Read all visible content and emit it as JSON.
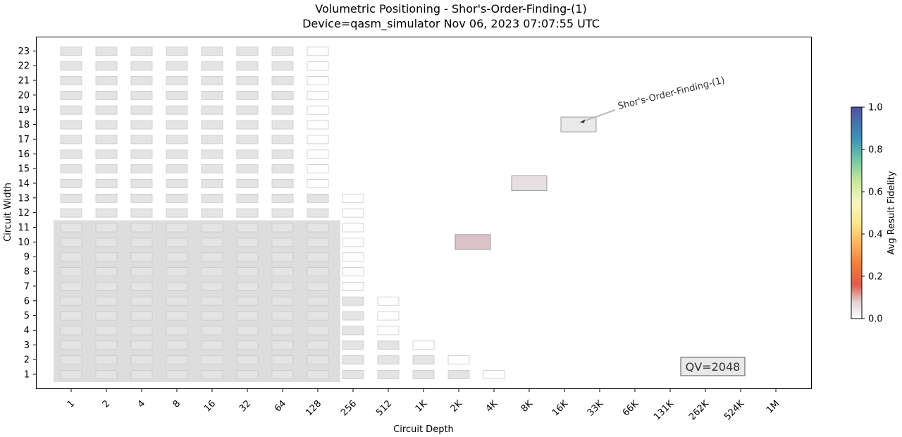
{
  "chart_data": {
    "type": "heatmap",
    "title": "Volumetric Positioning - Shor's-Order-Finding-(1)",
    "subtitle": "Device=qasm_simulator  Nov 06, 2023 07:07:55 UTC",
    "xlabel": "Circuit Depth",
    "ylabel": "Circuit Width",
    "x_tick_labels": [
      "1",
      "2",
      "4",
      "8",
      "16",
      "32",
      "64",
      "128",
      "256",
      "512",
      "1K",
      "2K",
      "4K",
      "8K",
      "16K",
      "33K",
      "66K",
      "131K",
      "262K",
      "524K",
      "1M"
    ],
    "y_tick_labels": [
      "1",
      "2",
      "3",
      "4",
      "5",
      "6",
      "7",
      "8",
      "9",
      "10",
      "11",
      "12",
      "13",
      "14",
      "15",
      "16",
      "17",
      "18",
      "19",
      "20",
      "21",
      "22",
      "23"
    ],
    "x_scale": "log2",
    "qv_region": {
      "max_depth_index": 7,
      "max_width": 11
    },
    "qv_label": "QV=2048",
    "background_cells": [
      {
        "columns": "1-8 gray, depth 128 white for widths 14-23",
        "widths": [
          1,
          23
        ]
      }
    ],
    "column_extents": [
      {
        "depth": "1",
        "max_width": 23,
        "white_above": 99
      },
      {
        "depth": "2",
        "max_width": 23,
        "white_above": 99
      },
      {
        "depth": "4",
        "max_width": 23,
        "white_above": 99
      },
      {
        "depth": "8",
        "max_width": 23,
        "white_above": 99
      },
      {
        "depth": "16",
        "max_width": 23,
        "white_above": 99
      },
      {
        "depth": "32",
        "max_width": 23,
        "white_above": 99
      },
      {
        "depth": "64",
        "max_width": 23,
        "white_above": 99
      },
      {
        "depth": "128",
        "max_width": 23,
        "white_above": 13
      },
      {
        "depth": "256",
        "max_width": 13,
        "white_above": 6
      },
      {
        "depth": "512",
        "max_width": 6,
        "white_above": 3
      },
      {
        "depth": "1K",
        "max_width": 3,
        "white_above": 2
      },
      {
        "depth": "2K",
        "max_width": 2,
        "white_above": 1
      },
      {
        "depth": "4K",
        "max_width": 1,
        "white_above": 0
      }
    ],
    "data_points": [
      {
        "depth_index": 11.4,
        "width": 10,
        "fidelity": 0.08,
        "color": "#dcc1c8"
      },
      {
        "depth_index": 13.0,
        "width": 14,
        "fidelity": 0.02,
        "color": "#e6e0e2"
      },
      {
        "depth_index": 14.4,
        "width": 18,
        "fidelity": 0.0,
        "color": "#e9e9e9"
      }
    ],
    "annotation": {
      "text": "Shor's-Order-Finding-(1)",
      "target_width": 18
    },
    "colorbar": {
      "label": "Avg Result Fidelity",
      "ticks": [
        "0.0",
        "0.2",
        "0.4",
        "0.6",
        "0.8",
        "1.0"
      ],
      "range": [
        0,
        1
      ]
    }
  }
}
